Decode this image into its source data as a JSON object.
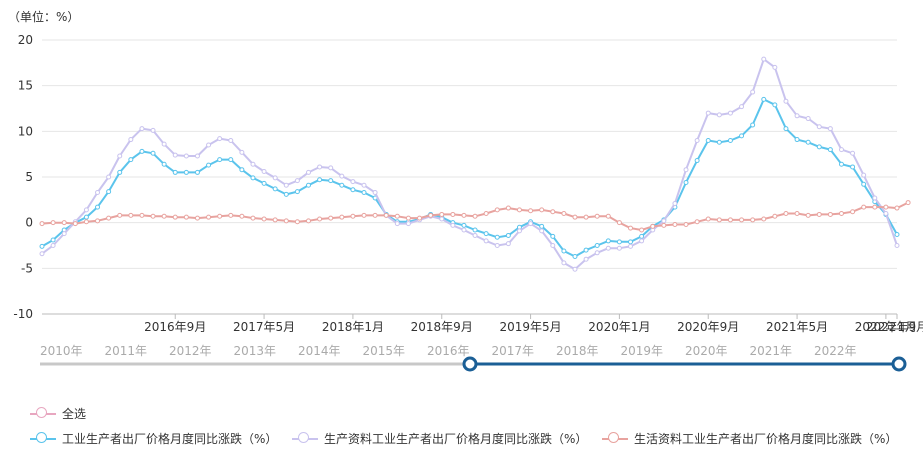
{
  "unit_label": "（单位：%）",
  "chart_data": {
    "type": "line",
    "ylim": [
      -10,
      20
    ],
    "yticks": [
      -10,
      -5,
      0,
      5,
      10,
      15,
      20
    ],
    "grid": true,
    "x_tick_labels": [
      "2016年9月",
      "2017年5月",
      "2018年1月",
      "2018年9月",
      "2019年5月",
      "2020年1月",
      "2020年9月",
      "2021年5月",
      "2022年1月",
      "2022年9月"
    ],
    "x_start": "2015年9月",
    "x_end": "2022年9月",
    "series": [
      {
        "name": "工业生产者出厂价格月度同比涨跌（%）",
        "color": "#5bc4ec",
        "values": [
          -2.6,
          -1.9,
          -0.8,
          0.0,
          0.6,
          1.7,
          3.4,
          5.5,
          6.9,
          7.8,
          7.6,
          6.4,
          5.5,
          5.5,
          5.5,
          6.3,
          6.9,
          6.9,
          5.8,
          4.9,
          4.3,
          3.7,
          3.1,
          3.4,
          4.1,
          4.7,
          4.6,
          4.1,
          3.6,
          3.3,
          2.7,
          0.9,
          0.1,
          0.1,
          0.4,
          0.9,
          0.6,
          0.0,
          -0.3,
          -0.8,
          -1.2,
          -1.6,
          -1.4,
          -0.5,
          0.1,
          -0.4,
          -1.5,
          -3.1,
          -3.7,
          -3.0,
          -2.5,
          -2.0,
          -2.1,
          -2.1,
          -1.5,
          -0.4,
          0.3,
          1.7,
          4.4,
          6.8,
          9.0,
          8.8,
          9.0,
          9.5,
          10.7,
          13.5,
          12.9,
          10.3,
          9.1,
          8.8,
          8.3,
          8.0,
          6.4,
          6.1,
          4.2,
          2.3,
          0.9,
          -1.3
        ]
      },
      {
        "name": "生产资料工业生产者出厂价格月度同比涨跌（%）",
        "color": "#c9c3ee",
        "values": [
          -3.4,
          -2.5,
          -1.2,
          0.1,
          1.4,
          3.3,
          5.0,
          7.3,
          9.1,
          10.3,
          10.1,
          8.6,
          7.4,
          7.3,
          7.3,
          8.5,
          9.2,
          9.0,
          7.7,
          6.4,
          5.6,
          4.9,
          4.1,
          4.6,
          5.5,
          6.1,
          6.0,
          5.1,
          4.5,
          4.1,
          3.3,
          0.8,
          -0.1,
          -0.1,
          0.3,
          0.7,
          0.4,
          -0.3,
          -0.8,
          -1.4,
          -2.0,
          -2.5,
          -2.3,
          -0.9,
          -0.1,
          -0.9,
          -2.5,
          -4.4,
          -5.1,
          -4.0,
          -3.3,
          -2.8,
          -2.8,
          -2.6,
          -2.0,
          -0.8,
          0.2,
          2.1,
          5.8,
          9.0,
          12.0,
          11.8,
          12.0,
          12.7,
          14.3,
          17.9,
          17.0,
          13.3,
          11.7,
          11.4,
          10.5,
          10.3,
          8.0,
          7.6,
          5.2,
          2.7,
          1.0,
          -2.5
        ]
      },
      {
        "name": "生活资料工业生产者出厂价格月度同比涨跌（%）",
        "color": "#e8a39f",
        "values": [
          -0.1,
          0.0,
          0.0,
          -0.1,
          0.1,
          0.2,
          0.5,
          0.8,
          0.8,
          0.8,
          0.7,
          0.7,
          0.6,
          0.6,
          0.5,
          0.6,
          0.7,
          0.8,
          0.7,
          0.5,
          0.4,
          0.3,
          0.2,
          0.1,
          0.2,
          0.4,
          0.5,
          0.6,
          0.7,
          0.8,
          0.8,
          0.8,
          0.7,
          0.5,
          0.5,
          0.8,
          0.9,
          0.9,
          0.8,
          0.7,
          1.0,
          1.4,
          1.6,
          1.4,
          1.3,
          1.4,
          1.2,
          1.0,
          0.6,
          0.6,
          0.7,
          0.7,
          0.0,
          -0.6,
          -0.8,
          -0.4,
          -0.3,
          -0.2,
          -0.2,
          0.1,
          0.4,
          0.3,
          0.3,
          0.3,
          0.3,
          0.4,
          0.7,
          1.0,
          1.0,
          0.8,
          0.9,
          0.9,
          1.0,
          1.2,
          1.7,
          1.7,
          1.7,
          1.6,
          2.2
        ]
      }
    ]
  },
  "timeline": {
    "years": [
      "2010年",
      "2011年",
      "2012年",
      "2013年",
      "2014年",
      "2015年",
      "2016年",
      "2017年",
      "2018年",
      "2019年",
      "2020年",
      "2021年",
      "2022年"
    ],
    "range_start_fraction": 0.5,
    "range_end_fraction": 1.0
  },
  "legend": {
    "select_all": "全选",
    "items": [
      "工业生产者出厂价格月度同比涨跌（%）",
      "生产资料工业生产者出厂价格月度同比涨跌（%）",
      "生活资料工业生产者出厂价格月度同比涨跌（%）"
    ],
    "colors": {
      "select_all": "#e8a7c0",
      "s1": "#5bc4ec",
      "s2": "#c9c3ee",
      "s3": "#e8a39f"
    }
  }
}
